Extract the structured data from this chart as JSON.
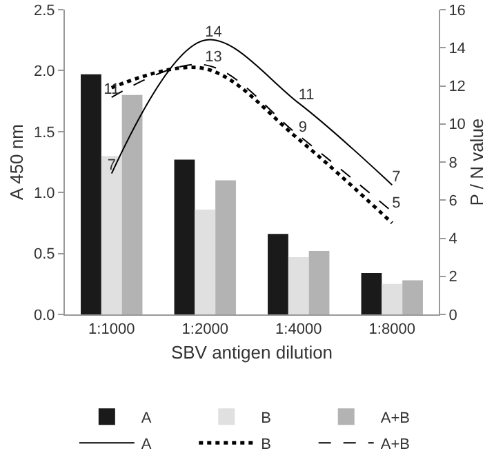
{
  "chart_data": {
    "type": "bar",
    "xlabel": "SBV antigen dilution",
    "ylabel": "A 450 nm",
    "y2label": "P / N value",
    "categories": [
      "1:1000",
      "1:2000",
      "1:4000",
      "1:8000"
    ],
    "series": [
      {
        "name": "A",
        "color": "#1a1a1a",
        "values": [
          1.97,
          1.27,
          0.66,
          0.34
        ]
      },
      {
        "name": "B",
        "color": "#e0e0e0",
        "values": [
          1.3,
          0.86,
          0.47,
          0.25
        ]
      },
      {
        "name": "A+B",
        "color": "#b3b3b3",
        "values": [
          1.8,
          1.1,
          0.52,
          0.28
        ]
      },
      {
        "name": "A",
        "type": "line",
        "axis": "y2",
        "color": "#000000",
        "line_style": "solid",
        "values": [
          7.4,
          14.4,
          11.1,
          6.8
        ],
        "value_labels": [
          "7",
          "14",
          "11",
          "7"
        ]
      },
      {
        "name": "B",
        "type": "line",
        "axis": "y2",
        "color": "#000000",
        "line_style": "dotted",
        "values": [
          11.9,
          12.9,
          9.2,
          4.8
        ]
      },
      {
        "name": "A+B",
        "type": "line",
        "axis": "y2",
        "color": "#000000",
        "line_style": "dashed",
        "values": [
          11.4,
          13.1,
          9.4,
          5.4
        ],
        "value_labels": [
          "11",
          "13",
          "9",
          "5"
        ]
      }
    ],
    "ylim": [
      0,
      2.5
    ],
    "yticks": [
      {
        "value": 0,
        "label": "0.0"
      },
      {
        "value": 0.5,
        "label": "0.5"
      },
      {
        "value": 1,
        "label": "1.0"
      },
      {
        "value": 1.5,
        "label": "1.5"
      },
      {
        "value": 2,
        "label": "2.0"
      },
      {
        "value": 2.5,
        "label": "2.5"
      }
    ],
    "y2lim": [
      0,
      16
    ],
    "y2ticks": [
      0,
      2,
      4,
      6,
      8,
      10,
      12,
      14,
      16
    ],
    "grid": false,
    "legend": "bottom",
    "marker": "none"
  }
}
